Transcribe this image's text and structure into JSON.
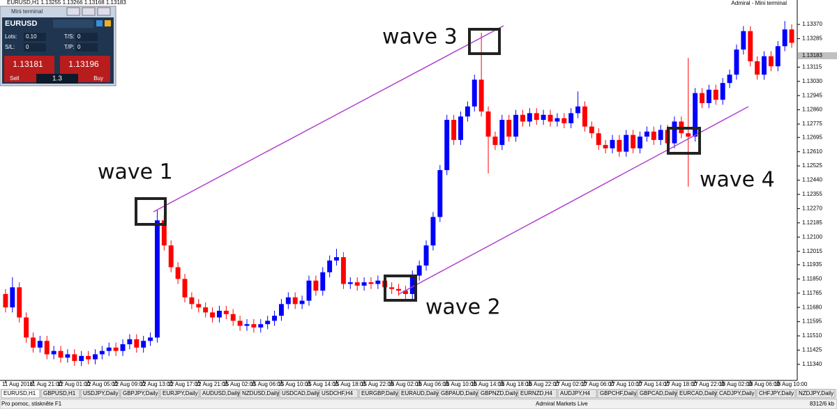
{
  "window": {
    "chart_header": "EURUSD,H1  1.13255 1.13266 1.13168 1.13183",
    "right_header": "Admiral - Mini terminal"
  },
  "mini_terminal": {
    "title": "Mini terminal",
    "symbol": "EURUSD",
    "lots_label": "Lots:",
    "lots": "0.10",
    "ts_label": "T/S:",
    "ts": "0",
    "sl_label": "S/L:",
    "sl": "0",
    "tp_label": "T/P:",
    "tp": "0",
    "sell_price": "1.13181",
    "buy_price": "1.13196",
    "sell": "Sell",
    "buy": "Buy",
    "volume": "1.3"
  },
  "chart_data": {
    "type": "candlestick",
    "up_color": "#0000ff",
    "down_color": "#ff0000",
    "grid": false,
    "ylim": [
      1.11248,
      1.13495
    ],
    "yticks": [
      {
        "value": 1.1337,
        "label": "1.13370"
      },
      1.13285,
      1.13115,
      {
        "value": 1.1303,
        "label": "1.13030"
      },
      1.12945,
      {
        "value": 1.1286,
        "label": "1.12860"
      },
      1.12775,
      1.12695,
      {
        "value": 1.1261,
        "label": "1.12610"
      },
      1.12525,
      {
        "value": 1.1244,
        "label": "1.12440"
      },
      1.12355,
      {
        "value": 1.1227,
        "label": "1.12270"
      },
      1.12185,
      {
        "value": 1.121,
        "label": "1.12100"
      },
      1.12015,
      1.11935,
      {
        "value": 1.1185,
        "label": "1.11850"
      },
      1.11765,
      {
        "value": 1.1168,
        "label": "1.11680"
      },
      1.11595,
      {
        "value": 1.1151,
        "label": "1.11510"
      },
      1.11425,
      {
        "value": 1.1134,
        "label": "1.11340"
      }
    ],
    "last_price": {
      "value": 1.13183,
      "label": "1.13183"
    },
    "x_labels": [
      "11 Aug 2016",
      "11 Aug 21:00",
      "12 Aug 01:00",
      "12 Aug 05:00",
      "12 Aug 09:00",
      "12 Aug 13:00",
      "12 Aug 17:00",
      "12 Aug 21:00",
      "15 Aug 02:00",
      "15 Aug 06:00",
      "15 Aug 10:00",
      "15 Aug 14:00",
      "15 Aug 18:00",
      "15 Aug 22:00",
      "16 Aug 02:00",
      "16 Aug 06:00",
      "16 Aug 10:00",
      "16 Aug 14:00",
      "16 Aug 18:00",
      "16 Aug 22:00",
      "17 Aug 02:00",
      "17 Aug 06:00",
      "17 Aug 10:00",
      "17 Aug 14:00",
      "17 Aug 18:00",
      "17 Aug 22:00",
      "18 Aug 02:00",
      "18 Aug 06:00",
      "18 Aug 10:00"
    ],
    "annotations": [
      "wave 1",
      "wave 2",
      "wave 3",
      "wave 4"
    ],
    "open": [
      1.1176,
      1.1168,
      1.118,
      1.1162,
      1.115,
      1.1144,
      1.1148,
      1.114,
      1.1142,
      1.1138,
      1.114,
      1.1136,
      1.1139,
      1.1137,
      1.114,
      1.1142,
      1.1144,
      1.1142,
      1.1146,
      1.1149,
      1.1144,
      1.1148,
      1.115,
      1.122,
      1.1205,
      1.1192,
      1.1185,
      1.1174,
      1.117,
      1.1168,
      1.1165,
      1.1162,
      1.1166,
      1.1164,
      1.116,
      1.1157,
      1.1158,
      1.1156,
      1.1158,
      1.116,
      1.1163,
      1.117,
      1.1174,
      1.117,
      1.1172,
      1.1184,
      1.1178,
      1.1189,
      1.1196,
      1.1198,
      1.1182,
      1.1183,
      1.1181,
      1.1183,
      1.1182,
      1.1184,
      1.118,
      1.1179,
      1.1178,
      1.1176,
      1.1187,
      1.1193,
      1.1205,
      1.1222,
      1.125,
      1.128,
      1.1268,
      1.1282,
      1.1288,
      1.1304,
      1.1285,
      1.127,
      1.1265,
      1.128,
      1.127,
      1.1283,
      1.1279,
      1.1284,
      1.128,
      1.1283,
      1.1279,
      1.1281,
      1.1278,
      1.1284,
      1.1288,
      1.1276,
      1.1272,
      1.1265,
      1.1263,
      1.1268,
      1.1261,
      1.1271,
      1.1263,
      1.127,
      1.1273,
      1.1268,
      1.1274,
      1.1266,
      1.1279,
      1.1272,
      1.127,
      1.1296,
      1.129,
      1.1298,
      1.1292,
      1.1302,
      1.1307,
      1.1322,
      1.1333,
      1.1315,
      1.1307,
      1.1318,
      1.1312,
      1.1324,
      1.1334
    ],
    "high": [
      1.1179,
      1.1186,
      1.1183,
      1.1165,
      1.1153,
      1.1151,
      1.1151,
      1.1145,
      1.1145,
      1.1143,
      1.1143,
      1.1142,
      1.1142,
      1.1143,
      1.1145,
      1.1147,
      1.1147,
      1.1149,
      1.1152,
      1.1152,
      1.1151,
      1.1153,
      1.1226,
      1.1223,
      1.1208,
      1.1195,
      1.1188,
      1.1177,
      1.1173,
      1.1171,
      1.1168,
      1.1169,
      1.1169,
      1.1167,
      1.1163,
      1.1161,
      1.1161,
      1.1161,
      1.1163,
      1.1166,
      1.1173,
      1.1177,
      1.1177,
      1.1175,
      1.1187,
      1.1187,
      1.1192,
      1.1199,
      1.1203,
      1.1201,
      1.1186,
      1.1186,
      1.1186,
      1.1186,
      1.1187,
      1.1187,
      1.1183,
      1.1182,
      1.1181,
      1.119,
      1.1196,
      1.1208,
      1.1225,
      1.1253,
      1.1283,
      1.1283,
      1.1285,
      1.1291,
      1.1307,
      1.1332,
      1.1288,
      1.1273,
      1.1283,
      1.1283,
      1.1286,
      1.1286,
      1.1287,
      1.1287,
      1.1286,
      1.1286,
      1.1284,
      1.1284,
      1.1287,
      1.1297,
      1.1291,
      1.1279,
      1.1275,
      1.1268,
      1.1271,
      1.1271,
      1.1274,
      1.1274,
      1.1273,
      1.1276,
      1.1276,
      1.1277,
      1.1277,
      1.1282,
      1.1282,
      1.1317,
      1.1299,
      1.1299,
      1.1301,
      1.1301,
      1.1305,
      1.131,
      1.1325,
      1.1336,
      1.1336,
      1.1318,
      1.1321,
      1.1321,
      1.1327,
      1.1339,
      1.1337
    ],
    "low": [
      1.1165,
      1.1165,
      1.1159,
      1.1147,
      1.1141,
      1.1141,
      1.1137,
      1.1137,
      1.1135,
      1.1135,
      1.1133,
      1.1133,
      1.1134,
      1.1134,
      1.1137,
      1.1139,
      1.1139,
      1.1139,
      1.1143,
      1.1141,
      1.1141,
      1.1145,
      1.1147,
      1.1202,
      1.1189,
      1.1182,
      1.1171,
      1.1167,
      1.1165,
      1.1162,
      1.1159,
      1.1159,
      1.1161,
      1.1157,
      1.1154,
      1.1154,
      1.1153,
      1.1153,
      1.1155,
      1.1157,
      1.116,
      1.1167,
      1.1167,
      1.1167,
      1.1169,
      1.1175,
      1.1175,
      1.1186,
      1.1193,
      1.1179,
      1.1179,
      1.1178,
      1.1178,
      1.1179,
      1.1179,
      1.1177,
      1.1176,
      1.1175,
      1.1173,
      1.1173,
      1.1184,
      1.119,
      1.1202,
      1.1219,
      1.1247,
      1.1265,
      1.1265,
      1.1279,
      1.1285,
      1.1282,
      1.1248,
      1.1262,
      1.1262,
      1.1267,
      1.1267,
      1.1276,
      1.1276,
      1.1277,
      1.1277,
      1.1276,
      1.1276,
      1.1275,
      1.1275,
      1.1281,
      1.1273,
      1.1269,
      1.1262,
      1.126,
      1.126,
      1.1258,
      1.1258,
      1.126,
      1.126,
      1.1267,
      1.1265,
      1.1265,
      1.1263,
      1.1263,
      1.1269,
      1.124,
      1.1267,
      1.1287,
      1.1287,
      1.1289,
      1.1289,
      1.1299,
      1.1304,
      1.1319,
      1.1312,
      1.1304,
      1.1304,
      1.1309,
      1.1309,
      1.1321,
      1.1323
    ],
    "close": [
      1.1168,
      1.118,
      1.1162,
      1.115,
      1.1144,
      1.1148,
      1.114,
      1.1142,
      1.1138,
      1.114,
      1.1136,
      1.1139,
      1.1137,
      1.114,
      1.1142,
      1.1144,
      1.1142,
      1.1146,
      1.1149,
      1.1144,
      1.1148,
      1.115,
      1.122,
      1.1205,
      1.1192,
      1.1185,
      1.1174,
      1.117,
      1.1168,
      1.1165,
      1.1162,
      1.1166,
      1.1164,
      1.116,
      1.1157,
      1.1158,
      1.1156,
      1.1158,
      1.116,
      1.1163,
      1.117,
      1.1174,
      1.117,
      1.1172,
      1.1184,
      1.1178,
      1.1189,
      1.1196,
      1.1198,
      1.1182,
      1.1183,
      1.1181,
      1.1183,
      1.1182,
      1.1184,
      1.118,
      1.1179,
      1.1178,
      1.1176,
      1.1187,
      1.1193,
      1.1205,
      1.1222,
      1.125,
      1.128,
      1.1268,
      1.1282,
      1.1288,
      1.1304,
      1.1285,
      1.127,
      1.1265,
      1.128,
      1.127,
      1.1283,
      1.1279,
      1.1284,
      1.128,
      1.1283,
      1.1279,
      1.1281,
      1.1278,
      1.1284,
      1.1288,
      1.1276,
      1.1272,
      1.1265,
      1.1263,
      1.1268,
      1.1261,
      1.1271,
      1.1263,
      1.127,
      1.1273,
      1.1268,
      1.1274,
      1.1266,
      1.1279,
      1.1272,
      1.127,
      1.1296,
      1.129,
      1.1298,
      1.1292,
      1.1302,
      1.1307,
      1.1322,
      1.1333,
      1.1315,
      1.1307,
      1.1318,
      1.1312,
      1.1324,
      1.1334,
      1.1326
    ]
  },
  "tabs": [
    "EURUSD,H1",
    "GBPUSD,H1",
    "USDJPY,Daily",
    "GBPJPY,Daily",
    "EURJPY,Daily",
    "AUDUSD,Daily",
    "NZDUSD,Daily",
    "USDCAD,Daily",
    "USDCHF,H4",
    "EURGBP,Daily",
    "EURAUD,Daily",
    "GBPAUD,Daily",
    "GBPNZD,Daily",
    "EURNZD,H4",
    "AUDJPY,H4",
    "GBPCHF,Daily",
    "GBPCAD,Daily",
    "EURCAD,Daily",
    "CADJPY,Daily",
    "CHFJPY,Daily",
    "NZDJPY,Daily"
  ],
  "status_bar": {
    "help": "Pro pomoc, stiskněte F1",
    "account": "Admiral Markets Live",
    "traffic": "8312/6 kb"
  }
}
